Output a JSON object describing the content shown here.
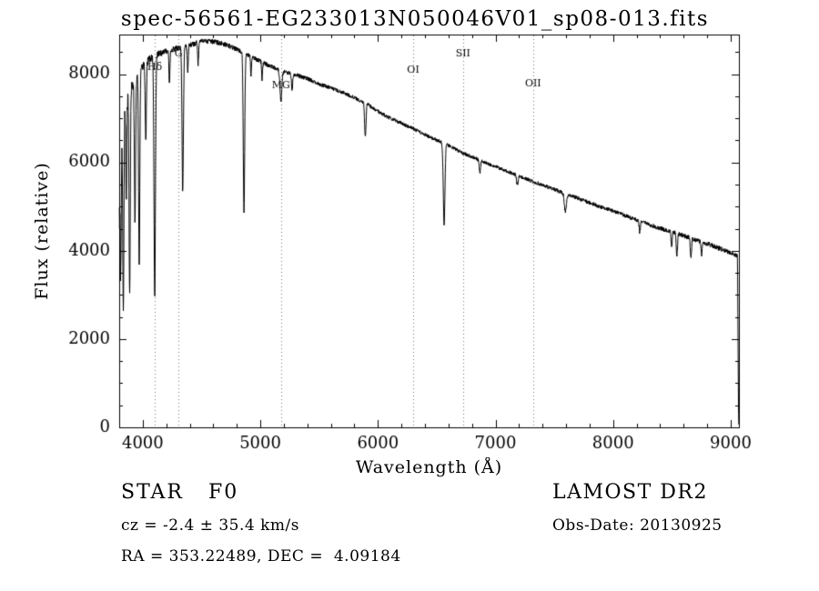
{
  "title": "spec-56561-EG233013N050046V01_sp08-013.fits",
  "chart_data": {
    "type": "line",
    "title": "spec-56561-EG233013N050046V01_sp08-013.fits",
    "xlabel": "Wavelength (Å)",
    "ylabel": "Flux (relative)",
    "xlim": [
      3800,
      9070
    ],
    "ylim": [
      0,
      8900
    ],
    "xticks": [
      4000,
      5000,
      6000,
      7000,
      8000,
      9000
    ],
    "yticks": [
      0,
      2000,
      4000,
      6000,
      8000
    ],
    "x_minor_step": 200,
    "y_minor_step": 500,
    "grid": false,
    "legend": "none",
    "series_name": "spectrum",
    "line_color": "#000000",
    "sample_step": 2,
    "continuum": [
      [
        3802,
        4800
      ],
      [
        3815,
        6200
      ],
      [
        3830,
        6900
      ],
      [
        3850,
        7250
      ],
      [
        3880,
        7500
      ],
      [
        3920,
        7800
      ],
      [
        3960,
        8000
      ],
      [
        4010,
        8230
      ],
      [
        4060,
        8350
      ],
      [
        4150,
        8480
      ],
      [
        4250,
        8560
      ],
      [
        4350,
        8620
      ],
      [
        4450,
        8700
      ],
      [
        4520,
        8760
      ],
      [
        4600,
        8740
      ],
      [
        4700,
        8680
      ],
      [
        4800,
        8570
      ],
      [
        4900,
        8430
      ],
      [
        5000,
        8290
      ],
      [
        5100,
        8170
      ],
      [
        5200,
        8060
      ],
      [
        5300,
        7990
      ],
      [
        5400,
        7900
      ],
      [
        5500,
        7780
      ],
      [
        5600,
        7690
      ],
      [
        5700,
        7590
      ],
      [
        5800,
        7470
      ],
      [
        5900,
        7340
      ],
      [
        6000,
        7160
      ],
      [
        6100,
        7010
      ],
      [
        6200,
        6890
      ],
      [
        6300,
        6770
      ],
      [
        6400,
        6630
      ],
      [
        6500,
        6510
      ],
      [
        6600,
        6390
      ],
      [
        6700,
        6240
      ],
      [
        6800,
        6130
      ],
      [
        6900,
        6010
      ],
      [
        7000,
        5910
      ],
      [
        7100,
        5800
      ],
      [
        7200,
        5690
      ],
      [
        7300,
        5590
      ],
      [
        7400,
        5490
      ],
      [
        7500,
        5390
      ],
      [
        7600,
        5290
      ],
      [
        7700,
        5190
      ],
      [
        7800,
        5090
      ],
      [
        7900,
        4990
      ],
      [
        8000,
        4900
      ],
      [
        8100,
        4800
      ],
      [
        8200,
        4700
      ],
      [
        8300,
        4600
      ],
      [
        8400,
        4510
      ],
      [
        8500,
        4430
      ],
      [
        8600,
        4340
      ],
      [
        8700,
        4250
      ],
      [
        8800,
        4160
      ],
      [
        8900,
        4060
      ],
      [
        8980,
        3970
      ],
      [
        9030,
        3910
      ],
      [
        9055,
        3880
      ],
      [
        9058,
        3840
      ],
      [
        9061,
        2600
      ],
      [
        9064,
        1400
      ],
      [
        9067,
        300
      ],
      [
        9069,
        40
      ]
    ],
    "absorption_lines": [
      [
        3813,
        2600,
        4
      ],
      [
        3835,
        4300,
        5
      ],
      [
        3860,
        2200,
        4
      ],
      [
        3889,
        4600,
        5
      ],
      [
        3934,
        3200,
        5
      ],
      [
        3970,
        4500,
        5
      ],
      [
        4026,
        1800,
        5
      ],
      [
        4102,
        5500,
        6
      ],
      [
        4227,
        800,
        4
      ],
      [
        4340,
        3250,
        6
      ],
      [
        4383,
        600,
        4
      ],
      [
        4471,
        500,
        4
      ],
      [
        4861,
        3620,
        6
      ],
      [
        4921,
        420,
        4
      ],
      [
        5015,
        380,
        4
      ],
      [
        5175,
        680,
        8
      ],
      [
        5270,
        350,
        5
      ],
      [
        5893,
        780,
        6
      ],
      [
        6563,
        1820,
        7
      ],
      [
        6867,
        300,
        6
      ],
      [
        7186,
        220,
        6
      ],
      [
        7594,
        400,
        9
      ],
      [
        8227,
        260,
        5
      ],
      [
        8498,
        340,
        5
      ],
      [
        8542,
        540,
        5
      ],
      [
        8662,
        470,
        5
      ],
      [
        8752,
        300,
        4
      ]
    ],
    "noise": {
      "seed": 20130925,
      "amplitude_profile": [
        [
          3802,
          340
        ],
        [
          3830,
          260
        ],
        [
          3860,
          190
        ],
        [
          3900,
          140
        ],
        [
          3950,
          105
        ],
        [
          4000,
          85
        ],
        [
          4300,
          62
        ],
        [
          4700,
          55
        ],
        [
          5000,
          50
        ],
        [
          5500,
          46
        ],
        [
          6000,
          42
        ],
        [
          6500,
          40
        ],
        [
          7000,
          40
        ],
        [
          7500,
          42
        ],
        [
          8000,
          46
        ],
        [
          8500,
          50
        ],
        [
          8900,
          56
        ],
        [
          9069,
          45
        ]
      ]
    },
    "line_markers": [
      {
        "label": "Hδ",
        "wavelength": 4102,
        "label_y": 77
      },
      {
        "label": "G",
        "wavelength": 4305,
        "label_y": 62
      },
      {
        "label": "MG",
        "wavelength": 5175,
        "label_y": 97
      },
      {
        "label": "OI",
        "wavelength": 6300,
        "label_y": 80
      },
      {
        "label": "SII",
        "wavelength": 6724,
        "label_y": 62
      },
      {
        "label": "OII",
        "wavelength": 7320,
        "label_y": 95
      }
    ]
  },
  "annotations": {
    "class_label": "STAR   F0",
    "survey": "LAMOST DR2",
    "cz": "cz = -2.4 ± 35.4 km/s",
    "obs_date": "Obs-Date: 20130925",
    "radec": "RA = 353.22489, DEC =  4.09184"
  }
}
